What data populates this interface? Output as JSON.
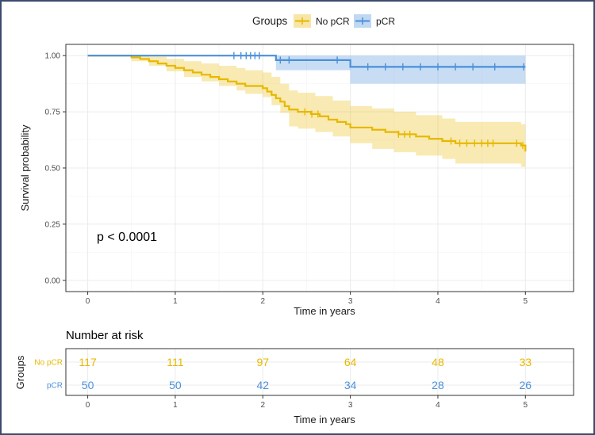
{
  "colors": {
    "no_pcr": "#E7B800",
    "pcr": "#4A90D9",
    "grid": "#ebebeb",
    "border": "#3c4a6e"
  },
  "legend": {
    "title": "Groups",
    "items": [
      "No pCR",
      "pCR"
    ]
  },
  "chart_data": [
    {
      "type": "line",
      "title": "",
      "xlabel": "Time in years",
      "ylabel": "Survival probability",
      "xlim": [
        -0.25,
        5.55
      ],
      "ylim": [
        -0.05,
        1.05
      ],
      "x_ticks": [
        0,
        1,
        2,
        3,
        4,
        5
      ],
      "y_ticks": [
        0.0,
        0.25,
        0.5,
        0.75,
        1.0
      ],
      "y_tick_labels": [
        "0.00",
        "0.25",
        "0.50",
        "0.75",
        "1.00"
      ],
      "annotation": "p < 0.0001",
      "series": [
        {
          "name": "No pCR",
          "color_key": "no_pcr",
          "steps": [
            [
              0,
              1.0
            ],
            [
              0.5,
              0.992
            ],
            [
              0.6,
              0.985
            ],
            [
              0.7,
              0.975
            ],
            [
              0.8,
              0.965
            ],
            [
              0.9,
              0.955
            ],
            [
              1.0,
              0.945
            ],
            [
              1.1,
              0.935
            ],
            [
              1.2,
              0.925
            ],
            [
              1.3,
              0.915
            ],
            [
              1.4,
              0.905
            ],
            [
              1.5,
              0.895
            ],
            [
              1.6,
              0.885
            ],
            [
              1.7,
              0.875
            ],
            [
              1.8,
              0.865
            ],
            [
              2.0,
              0.855
            ],
            [
              2.05,
              0.84
            ],
            [
              2.1,
              0.825
            ],
            [
              2.15,
              0.81
            ],
            [
              2.2,
              0.795
            ],
            [
              2.25,
              0.775
            ],
            [
              2.3,
              0.76
            ],
            [
              2.4,
              0.75
            ],
            [
              2.55,
              0.74
            ],
            [
              2.65,
              0.73
            ],
            [
              2.75,
              0.715
            ],
            [
              2.85,
              0.705
            ],
            [
              2.95,
              0.695
            ],
            [
              3.0,
              0.68
            ],
            [
              3.25,
              0.67
            ],
            [
              3.4,
              0.66
            ],
            [
              3.55,
              0.65
            ],
            [
              3.75,
              0.64
            ],
            [
              3.9,
              0.63
            ],
            [
              4.05,
              0.62
            ],
            [
              4.2,
              0.61
            ],
            [
              4.95,
              0.6
            ],
            [
              5.0,
              0.573
            ]
          ],
          "upper": [
            [
              0,
              1.0
            ],
            [
              0.5,
              1.0
            ],
            [
              0.7,
              0.995
            ],
            [
              0.9,
              0.985
            ],
            [
              1.1,
              0.975
            ],
            [
              1.3,
              0.965
            ],
            [
              1.5,
              0.955
            ],
            [
              1.7,
              0.945
            ],
            [
              1.8,
              0.935
            ],
            [
              2.0,
              0.925
            ],
            [
              2.1,
              0.905
            ],
            [
              2.2,
              0.875
            ],
            [
              2.3,
              0.845
            ],
            [
              2.4,
              0.835
            ],
            [
              2.6,
              0.82
            ],
            [
              2.8,
              0.8
            ],
            [
              3.0,
              0.775
            ],
            [
              3.25,
              0.765
            ],
            [
              3.5,
              0.75
            ],
            [
              3.75,
              0.735
            ],
            [
              4.05,
              0.72
            ],
            [
              4.2,
              0.705
            ],
            [
              4.95,
              0.695
            ],
            [
              5.0,
              0.67
            ]
          ],
          "lower": [
            [
              0,
              1.0
            ],
            [
              0.5,
              0.975
            ],
            [
              0.7,
              0.955
            ],
            [
              0.9,
              0.93
            ],
            [
              1.1,
              0.905
            ],
            [
              1.3,
              0.885
            ],
            [
              1.5,
              0.865
            ],
            [
              1.7,
              0.845
            ],
            [
              1.8,
              0.83
            ],
            [
              2.0,
              0.815
            ],
            [
              2.1,
              0.78
            ],
            [
              2.2,
              0.745
            ],
            [
              2.3,
              0.685
            ],
            [
              2.4,
              0.675
            ],
            [
              2.6,
              0.66
            ],
            [
              2.8,
              0.64
            ],
            [
              3.0,
              0.61
            ],
            [
              3.25,
              0.585
            ],
            [
              3.5,
              0.57
            ],
            [
              3.75,
              0.555
            ],
            [
              4.05,
              0.54
            ],
            [
              4.2,
              0.52
            ],
            [
              4.95,
              0.505
            ],
            [
              5.0,
              0.48
            ]
          ],
          "censor_x": [
            2.48,
            2.56,
            2.63,
            3.55,
            3.62,
            3.68,
            4.15,
            4.25,
            4.33,
            4.42,
            4.5,
            4.57,
            4.63,
            4.9,
            4.97
          ]
        },
        {
          "name": "pCR",
          "color_key": "pcr",
          "steps": [
            [
              0,
              1.0
            ],
            [
              2.15,
              0.98
            ],
            [
              3.0,
              0.95
            ],
            [
              5.0,
              0.95
            ]
          ],
          "upper": [
            [
              0,
              1.0
            ],
            [
              5.0,
              1.0
            ]
          ],
          "lower": [
            [
              0,
              1.0
            ],
            [
              2.15,
              0.935
            ],
            [
              3.0,
              0.875
            ],
            [
              5.0,
              0.875
            ]
          ],
          "censor_x": [
            1.67,
            1.75,
            1.81,
            1.86,
            1.91,
            1.96,
            2.2,
            2.3,
            2.85,
            3.2,
            3.4,
            3.6,
            3.8,
            4.0,
            4.2,
            4.4,
            4.65,
            4.98
          ]
        }
      ]
    },
    {
      "type": "table",
      "title": "Number at risk",
      "xlabel": "Time in years",
      "ylabel": "Groups",
      "x_ticks": [
        0,
        1,
        2,
        3,
        4,
        5
      ],
      "rows": [
        {
          "label": "No pCR",
          "color_key": "no_pcr",
          "values": [
            117,
            111,
            97,
            64,
            48,
            33
          ]
        },
        {
          "label": "pCR",
          "color_key": "pcr",
          "values": [
            50,
            50,
            42,
            34,
            28,
            26
          ]
        }
      ]
    }
  ]
}
